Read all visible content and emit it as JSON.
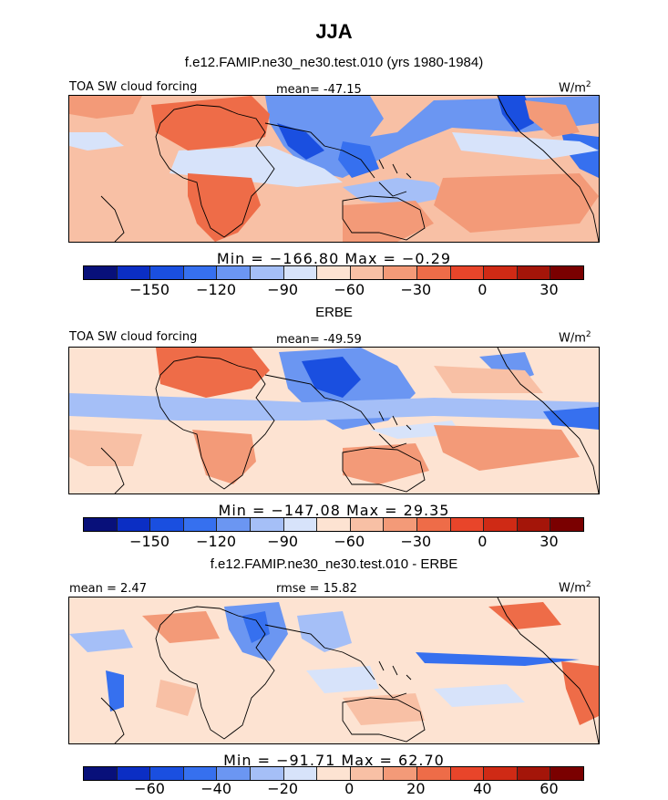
{
  "figure": {
    "title": "JJA"
  },
  "palette": [
    "#08107a",
    "#0b2ec4",
    "#1a4fe0",
    "#3670ef",
    "#6b96f2",
    "#a5bff7",
    "#d7e3fa",
    "#fde3d2",
    "#f8c0a5",
    "#f39a78",
    "#ee6c48",
    "#e8452a",
    "#cf2a15",
    "#a41509",
    "#7a0000"
  ],
  "chart_data": [
    {
      "type": "heatmap",
      "title": "f.e12.FAMIP.ne30_ne30.test.010 (yrs 1980-1984)",
      "left_label": "TOA SW cloud forcing",
      "center_label": "mean= -47.15",
      "units_base": "W/m",
      "units_exp": "2",
      "minmax": "Min = −166.80 Max = −0.29",
      "min": -166.8,
      "max": -0.29,
      "mean": -47.15,
      "levels": [
        -165,
        -150,
        -135,
        -120,
        -105,
        -90,
        -75,
        -60,
        -45,
        -30,
        -15,
        0,
        15,
        30
      ],
      "tick_labels": [
        "−150",
        "−120",
        "−90",
        "−60",
        "−30",
        "0",
        "30"
      ]
    },
    {
      "type": "heatmap",
      "title": "ERBE",
      "left_label": "TOA SW cloud forcing",
      "center_label": "mean= -49.59",
      "units_base": "W/m",
      "units_exp": "2",
      "minmax": "Min = −147.08 Max = 29.35",
      "min": -147.08,
      "max": 29.35,
      "mean": -49.59,
      "levels": [
        -165,
        -150,
        -135,
        -120,
        -105,
        -90,
        -75,
        -60,
        -45,
        -30,
        -15,
        0,
        15,
        30
      ],
      "tick_labels": [
        "−150",
        "−120",
        "−90",
        "−60",
        "−30",
        "0",
        "30"
      ]
    },
    {
      "type": "heatmap",
      "title": "f.e12.FAMIP.ne30_ne30.test.010 - ERBE",
      "left_label": "mean = 2.47",
      "center_label": "rmse = 15.82",
      "units_base": "W/m",
      "units_exp": "2",
      "minmax": "Min = −91.71 Max = 62.70",
      "min": -91.71,
      "max": 62.7,
      "mean": 2.47,
      "rmse": 15.82,
      "levels": [
        -70,
        -60,
        -50,
        -40,
        -30,
        -20,
        -10,
        0,
        10,
        20,
        30,
        40,
        50,
        60
      ],
      "tick_labels": [
        "−60",
        "−40",
        "−20",
        "0",
        "20",
        "40",
        "60"
      ]
    }
  ]
}
